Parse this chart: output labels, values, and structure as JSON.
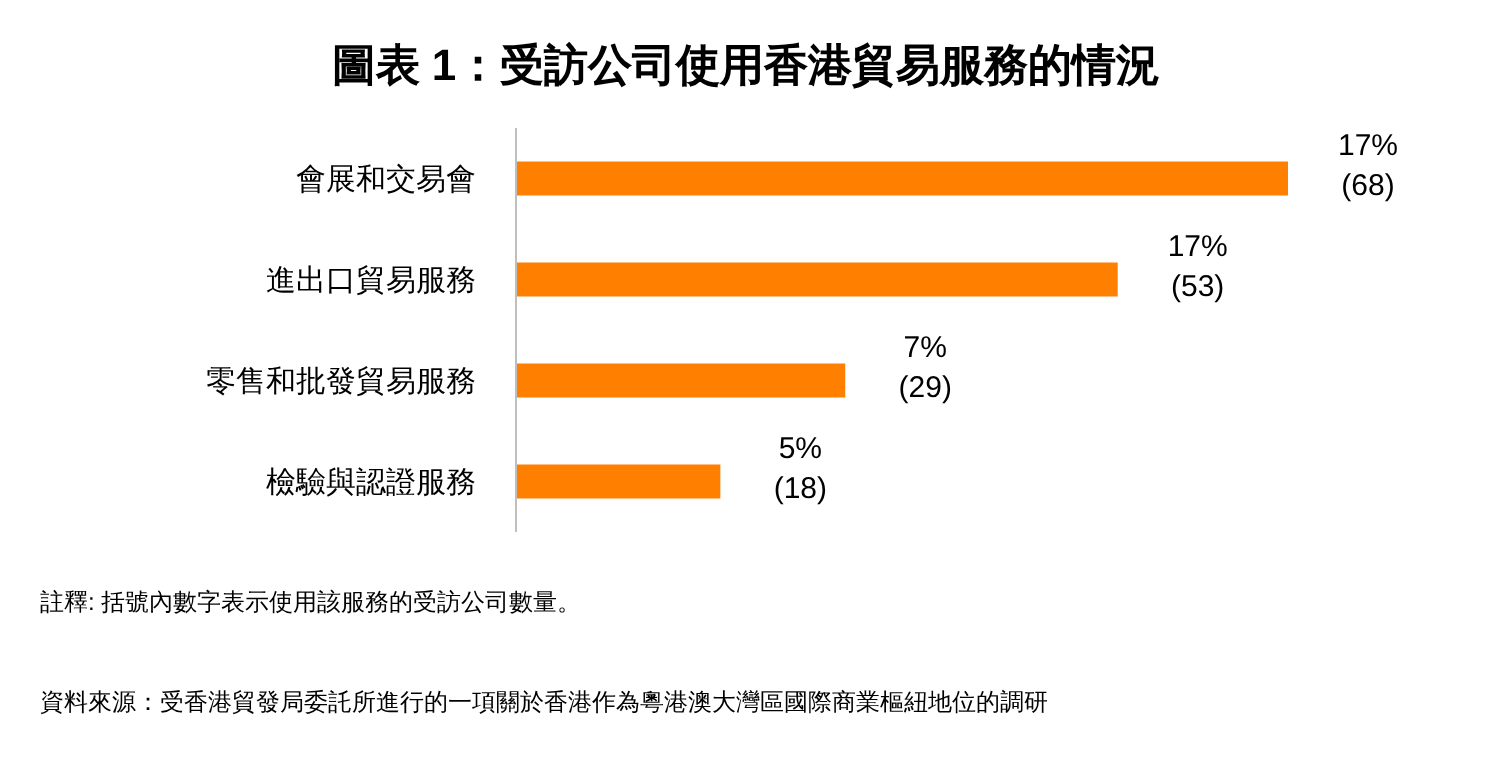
{
  "chart_data": {
    "type": "bar",
    "orientation": "horizontal",
    "title": "圖表 1：受訪公司使用香港貿易服務的情況",
    "categories": [
      "會展和交易會",
      "進出口貿易服務",
      "零售和批發貿易服務",
      "檢驗與認證服務"
    ],
    "values": [
      68,
      53,
      29,
      18
    ],
    "value_labels": [
      "17%\n(68)",
      "17%\n(53)",
      "7%\n(29)",
      "5%\n(18)"
    ],
    "color": "#ff8000",
    "annotations": [
      "註釋: 括號內數字表示使用該服務的受訪公司數量。",
      "資料來源：受香港貿發局委託所進行的一項關於香港作為粵港澳大灣區國際商業樞紐地位的調研"
    ]
  }
}
